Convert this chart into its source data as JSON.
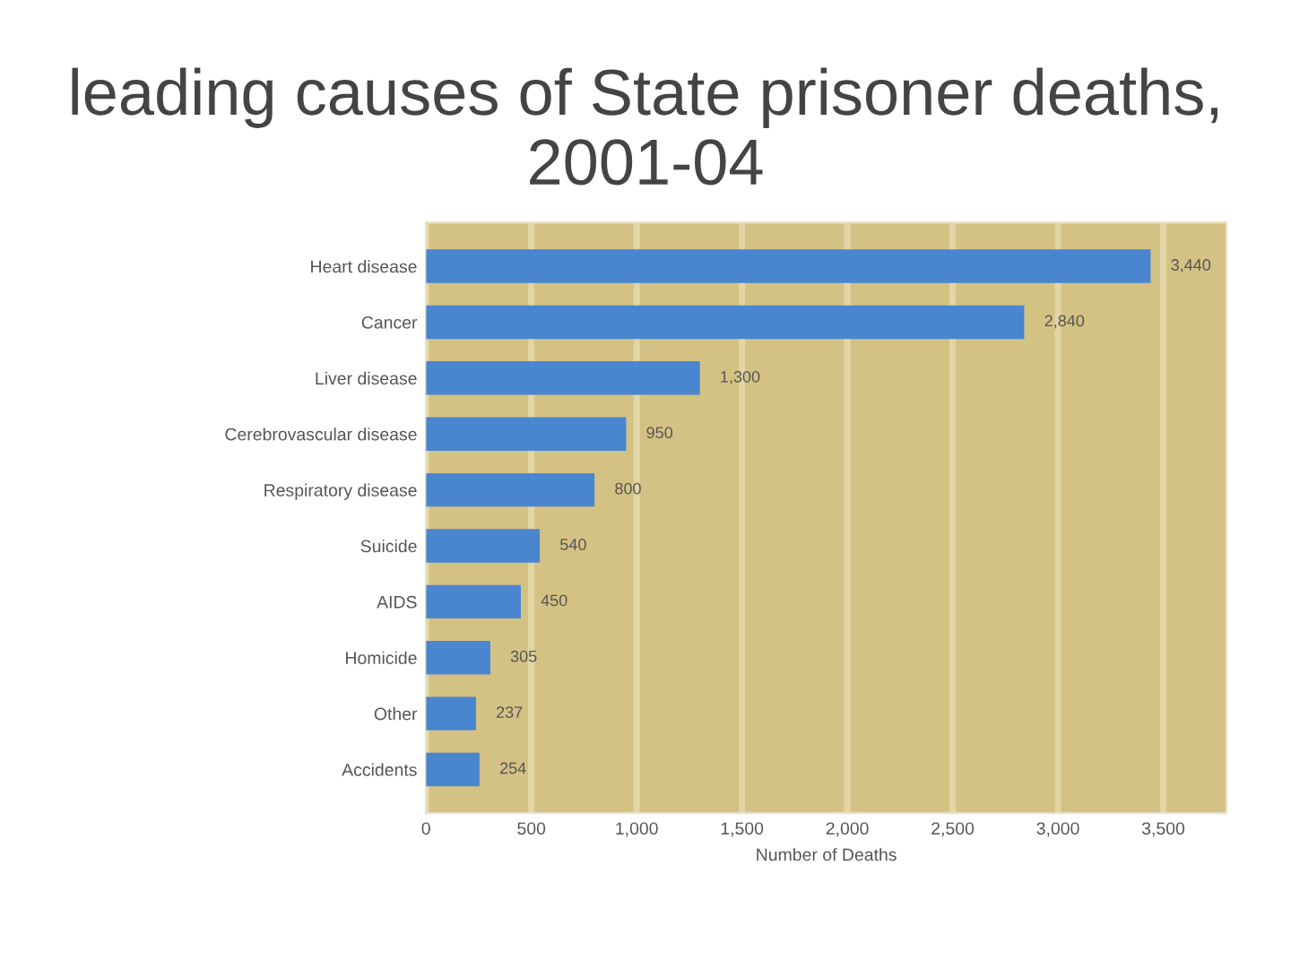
{
  "chart_data": {
    "type": "bar",
    "orientation": "horizontal",
    "title": "leading causes of State prisoner deaths, 2001-04",
    "categories": [
      "Heart disease",
      "Cancer",
      "Liver disease",
      "Cerebrovascular disease",
      "Respiratory disease",
      "Suicide",
      "AIDS",
      "Homicide",
      "Other",
      "Accidents"
    ],
    "values": [
      3440,
      2840,
      1300,
      950,
      800,
      540,
      450,
      305,
      237,
      254
    ],
    "color": "#4a86d0",
    "value_labels": [
      "3,440",
      "2,840",
      "1,300",
      "950",
      "800",
      "540",
      "450",
      "305",
      "237",
      "254"
    ],
    "xlabel": "Number of Deaths",
    "xlim": [
      0,
      3800
    ],
    "xticks": [
      0,
      {
        "value": 500,
        "label": "500"
      },
      {
        "value": 1000,
        "label": "1,000"
      },
      {
        "value": 1500,
        "label": "1,500"
      },
      {
        "value": 2000,
        "label": "2,000"
      },
      {
        "value": 2500,
        "label": "2,500"
      },
      {
        "value": 3000,
        "label": "3,000"
      },
      {
        "value": 3500,
        "label": "3,500"
      }
    ],
    "grid": "x"
  }
}
